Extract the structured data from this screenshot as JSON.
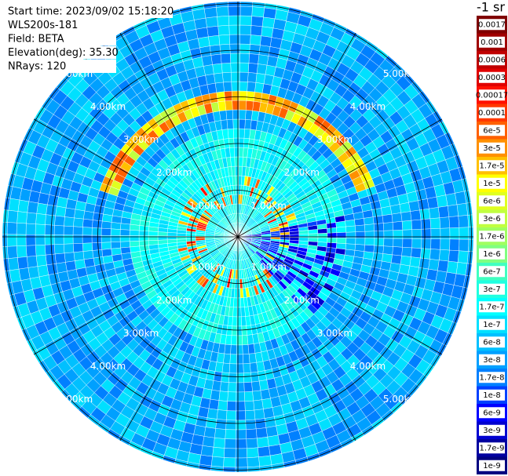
{
  "info": [
    "Start time: 2023/09/02 15:18:20",
    "WLS200s-181",
    "Field: BETA",
    "Elevation(deg): 35.30",
    "NRays: 120"
  ],
  "range_rings": [
    "1.00km",
    "2.00km",
    "3.00km",
    "4.00km",
    "5.00km"
  ],
  "colorbar": {
    "title": "-1 sr",
    "entries": [
      {
        "label": "0.0017",
        "color": "#800000"
      },
      {
        "label": "0.001",
        "color": "#a00000"
      },
      {
        "label": "0.0006",
        "color": "#c00000"
      },
      {
        "label": "0.0003",
        "color": "#e00000"
      },
      {
        "label": "0.00017",
        "color": "#ff1000"
      },
      {
        "label": "0.0001",
        "color": "#ff3800"
      },
      {
        "label": "6e-5",
        "color": "#ff6000"
      },
      {
        "label": "3e-5",
        "color": "#ff9000"
      },
      {
        "label": "1.7e-5",
        "color": "#ffc000"
      },
      {
        "label": "1e-5",
        "color": "#ffff00"
      },
      {
        "label": "6e-6",
        "color": "#e0ff20"
      },
      {
        "label": "3e-6",
        "color": "#c0ff40"
      },
      {
        "label": "1.7e-6",
        "color": "#a0ff60"
      },
      {
        "label": "1e-6",
        "color": "#80ff80"
      },
      {
        "label": "6e-7",
        "color": "#40ffc0"
      },
      {
        "label": "3e-7",
        "color": "#20ffe0"
      },
      {
        "label": "1.7e-7",
        "color": "#00ffff"
      },
      {
        "label": "1e-7",
        "color": "#00e0ff"
      },
      {
        "label": "6e-8",
        "color": "#00c0ff"
      },
      {
        "label": "3e-8",
        "color": "#00a0ff"
      },
      {
        "label": "1.7e-8",
        "color": "#0080ff"
      },
      {
        "label": "1e-8",
        "color": "#0040ff"
      },
      {
        "label": "6e-9",
        "color": "#0000ff"
      },
      {
        "label": "3e-9",
        "color": "#0000d0"
      },
      {
        "label": "1.7e-9",
        "color": "#0000a0"
      },
      {
        "label": "1e-9",
        "color": "#000080"
      }
    ]
  }
}
